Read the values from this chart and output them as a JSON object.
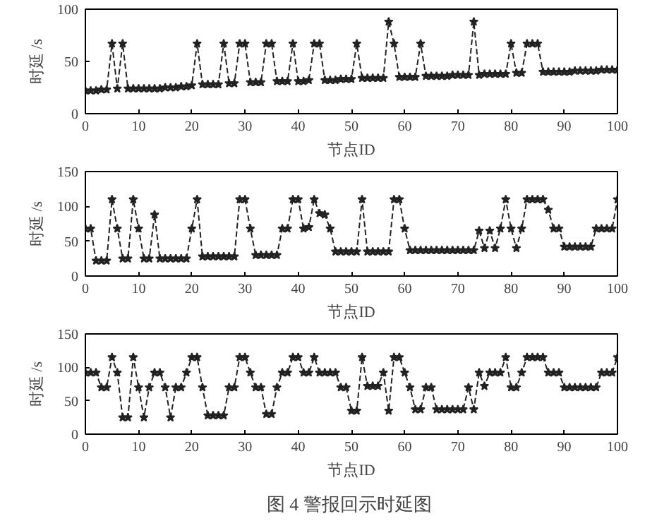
{
  "chart_data": [
    {
      "type": "line",
      "xlabel": "节点ID",
      "ylabel": "时延 /s",
      "xlim": [
        0,
        100
      ],
      "ylim": [
        0,
        100
      ],
      "xticks": [
        0,
        10,
        20,
        30,
        40,
        50,
        60,
        70,
        80,
        90,
        100
      ],
      "yticks": [
        0,
        50,
        100
      ],
      "grid": false,
      "marker": "star",
      "line_style": "dashed",
      "x": [
        0,
        1,
        2,
        3,
        4,
        5,
        6,
        7,
        8,
        9,
        10,
        11,
        12,
        13,
        14,
        15,
        16,
        17,
        18,
        19,
        20,
        21,
        22,
        23,
        24,
        25,
        26,
        27,
        28,
        29,
        30,
        31,
        32,
        33,
        34,
        35,
        36,
        37,
        38,
        39,
        40,
        41,
        42,
        43,
        44,
        45,
        46,
        47,
        48,
        49,
        50,
        51,
        52,
        53,
        54,
        55,
        56,
        57,
        58,
        59,
        60,
        61,
        62,
        63,
        64,
        65,
        66,
        67,
        68,
        69,
        70,
        71,
        72,
        73,
        74,
        75,
        76,
        77,
        78,
        79,
        80,
        81,
        82,
        83,
        84,
        85,
        86,
        87,
        88,
        89,
        90,
        91,
        92,
        93,
        94,
        95,
        96,
        97,
        98,
        99,
        100
      ],
      "series": [
        {
          "color": "#222222",
          "values": [
            22,
            22,
            22,
            23,
            23,
            67,
            24,
            67,
            24,
            24,
            24,
            24,
            24,
            24,
            24,
            25,
            25,
            25,
            26,
            26,
            27,
            67,
            28,
            28,
            28,
            28,
            67,
            29,
            29,
            67,
            67,
            30,
            30,
            30,
            67,
            67,
            31,
            31,
            31,
            67,
            31,
            31,
            32,
            67,
            67,
            32,
            32,
            32,
            33,
            33,
            33,
            67,
            34,
            34,
            34,
            34,
            34,
            88,
            67,
            35,
            35,
            35,
            35,
            67,
            36,
            36,
            36,
            36,
            36,
            37,
            37,
            37,
            37,
            88,
            37,
            38,
            38,
            38,
            38,
            38,
            67,
            39,
            39,
            67,
            67,
            67,
            40,
            40,
            40,
            40,
            40,
            40,
            41,
            41,
            41,
            41,
            41,
            42,
            42,
            42,
            42
          ]
        }
      ]
    },
    {
      "type": "line",
      "xlabel": "节点ID",
      "ylabel": "时延 /s",
      "xlim": [
        0,
        100
      ],
      "ylim": [
        0,
        150
      ],
      "xticks": [
        0,
        10,
        20,
        30,
        40,
        50,
        60,
        70,
        80,
        90,
        100
      ],
      "yticks": [
        0,
        50,
        100,
        150
      ],
      "grid": false,
      "marker": "star",
      "line_style": "dashed",
      "x": [
        0,
        1,
        2,
        3,
        4,
        5,
        6,
        7,
        8,
        9,
        10,
        11,
        12,
        13,
        14,
        15,
        16,
        17,
        18,
        19,
        20,
        21,
        22,
        23,
        24,
        25,
        26,
        27,
        28,
        29,
        30,
        31,
        32,
        33,
        34,
        35,
        36,
        37,
        38,
        39,
        40,
        41,
        42,
        43,
        44,
        45,
        46,
        47,
        48,
        49,
        50,
        51,
        52,
        53,
        54,
        55,
        56,
        57,
        58,
        59,
        60,
        61,
        62,
        63,
        64,
        65,
        66,
        67,
        68,
        69,
        70,
        71,
        72,
        73,
        74,
        75,
        76,
        77,
        78,
        79,
        80,
        81,
        82,
        83,
        84,
        85,
        86,
        87,
        88,
        89,
        90,
        91,
        92,
        93,
        94,
        95,
        96,
        97,
        98,
        99,
        100
      ],
      "series": [
        {
          "color": "#222222",
          "values": [
            68,
            68,
            22,
            22,
            22,
            110,
            68,
            25,
            25,
            110,
            68,
            25,
            25,
            88,
            25,
            25,
            25,
            25,
            25,
            25,
            68,
            110,
            28,
            28,
            28,
            28,
            28,
            28,
            28,
            110,
            110,
            68,
            30,
            30,
            30,
            30,
            30,
            68,
            68,
            110,
            110,
            68,
            70,
            110,
            90,
            88,
            68,
            35,
            35,
            35,
            35,
            35,
            110,
            35,
            35,
            35,
            35,
            35,
            110,
            110,
            68,
            37,
            37,
            37,
            37,
            37,
            37,
            37,
            37,
            37,
            37,
            37,
            37,
            37,
            65,
            40,
            65,
            40,
            68,
            110,
            68,
            40,
            68,
            110,
            110,
            110,
            110,
            95,
            68,
            68,
            42,
            42,
            42,
            42,
            42,
            42,
            68,
            68,
            68,
            68,
            110
          ]
        }
      ]
    },
    {
      "type": "line",
      "xlabel": "节点ID",
      "ylabel": "时延 /s",
      "xlim": [
        0,
        100
      ],
      "ylim": [
        0,
        150
      ],
      "xticks": [
        0,
        10,
        20,
        30,
        40,
        50,
        60,
        70,
        80,
        90,
        100
      ],
      "yticks": [
        0,
        50,
        100,
        150
      ],
      "grid": false,
      "marker": "star",
      "line_style": "dashed",
      "annotations": [
        "图 4  警报回示时延图"
      ],
      "x": [
        0,
        1,
        2,
        3,
        4,
        5,
        6,
        7,
        8,
        9,
        10,
        11,
        12,
        13,
        14,
        15,
        16,
        17,
        18,
        19,
        20,
        21,
        22,
        23,
        24,
        25,
        26,
        27,
        28,
        29,
        30,
        31,
        32,
        33,
        34,
        35,
        36,
        37,
        38,
        39,
        40,
        41,
        42,
        43,
        44,
        45,
        46,
        47,
        48,
        49,
        50,
        51,
        52,
        53,
        54,
        55,
        56,
        57,
        58,
        59,
        60,
        61,
        62,
        63,
        64,
        65,
        66,
        67,
        68,
        69,
        70,
        71,
        72,
        73,
        74,
        75,
        76,
        77,
        78,
        79,
        80,
        81,
        82,
        83,
        84,
        85,
        86,
        87,
        88,
        89,
        90,
        91,
        92,
        93,
        94,
        95,
        96,
        97,
        98,
        99,
        100
      ],
      "series": [
        {
          "color": "#222222",
          "values": [
            92,
            92,
            92,
            70,
            70,
            115,
            92,
            25,
            25,
            115,
            70,
            25,
            70,
            92,
            92,
            70,
            25,
            70,
            70,
            92,
            115,
            115,
            70,
            28,
            28,
            28,
            28,
            70,
            70,
            115,
            115,
            92,
            70,
            70,
            30,
            30,
            70,
            92,
            92,
            115,
            115,
            92,
            92,
            115,
            92,
            92,
            92,
            92,
            70,
            70,
            35,
            35,
            115,
            72,
            72,
            72,
            92,
            35,
            115,
            115,
            92,
            70,
            37,
            37,
            70,
            70,
            37,
            37,
            37,
            37,
            37,
            37,
            70,
            37,
            92,
            72,
            92,
            92,
            92,
            115,
            70,
            70,
            92,
            115,
            115,
            115,
            115,
            92,
            92,
            92,
            70,
            70,
            70,
            70,
            70,
            70,
            70,
            92,
            92,
            92,
            115
          ]
        }
      ]
    }
  ]
}
